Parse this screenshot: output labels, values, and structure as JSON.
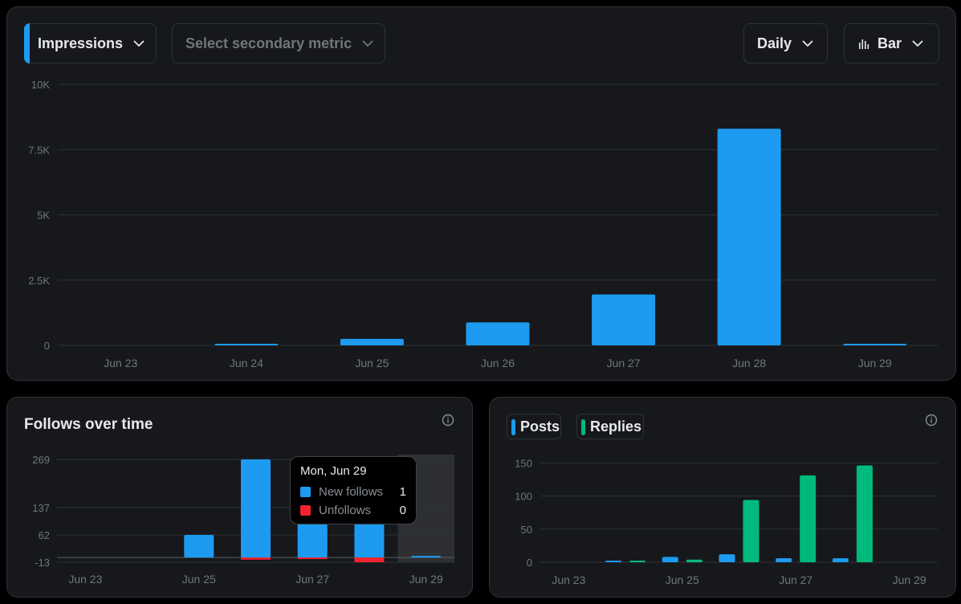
{
  "main": {
    "primary_metric": "Impressions",
    "secondary_placeholder": "Select secondary metric",
    "interval": "Daily",
    "chart_type": "Bar"
  },
  "follows": {
    "title": "Follows over time",
    "tooltip": {
      "date": "Mon, Jun 29",
      "rows": [
        {
          "label": "New follows",
          "value": "1"
        },
        {
          "label": "Unfollows",
          "value": "0"
        }
      ]
    }
  },
  "posts": {
    "legend": [
      "Posts",
      "Replies"
    ]
  },
  "colors": {
    "blue": "#1d9bf0",
    "red": "#f4212e",
    "green": "#00ba7c"
  },
  "chart_data": [
    {
      "type": "bar",
      "categories": [
        "Jun 23",
        "Jun 24",
        "Jun 25",
        "Jun 26",
        "Jun 27",
        "Jun 28",
        "Jun 29"
      ],
      "series": [
        {
          "name": "Impressions",
          "values": [
            0,
            50,
            250,
            880,
            1950,
            8300,
            30
          ]
        }
      ],
      "y_ticks": [
        "0",
        "2.5K",
        "5K",
        "7.5K",
        "10K"
      ],
      "ylim": [
        0,
        10000
      ],
      "grid": true
    },
    {
      "type": "bar",
      "categories": [
        "Jun 23",
        "Jun 24",
        "Jun 25",
        "Jun 26",
        "Jun 27",
        "Jun 28",
        "Jun 29"
      ],
      "x_ticks": [
        "Jun 23",
        "Jun 25",
        "Jun 27",
        "Jun 29"
      ],
      "series": [
        {
          "name": "New follows",
          "values": [
            0,
            0,
            62,
            269,
            137,
            137,
            1
          ]
        },
        {
          "name": "Unfollows",
          "values": [
            0,
            0,
            0,
            -6,
            -3,
            -13,
            0
          ]
        }
      ],
      "y_ticks": [
        "-13",
        "62",
        "137",
        "269"
      ],
      "ylim": [
        -13,
        269
      ],
      "grid": true
    },
    {
      "type": "bar",
      "categories": [
        "Jun 23",
        "Jun 24",
        "Jun 25",
        "Jun 26",
        "Jun 27",
        "Jun 28",
        "Jun 29"
      ],
      "x_ticks": [
        "Jun 23",
        "Jun 25",
        "Jun 27",
        "Jun 29"
      ],
      "series": [
        {
          "name": "Posts",
          "values": [
            0,
            1,
            8,
            12,
            6,
            6,
            0
          ]
        },
        {
          "name": "Replies",
          "values": [
            0,
            2,
            4,
            94,
            131,
            146,
            0
          ]
        }
      ],
      "y_ticks": [
        "0",
        "50",
        "100",
        "150"
      ],
      "ylim": [
        0,
        160
      ],
      "grid": true
    }
  ]
}
